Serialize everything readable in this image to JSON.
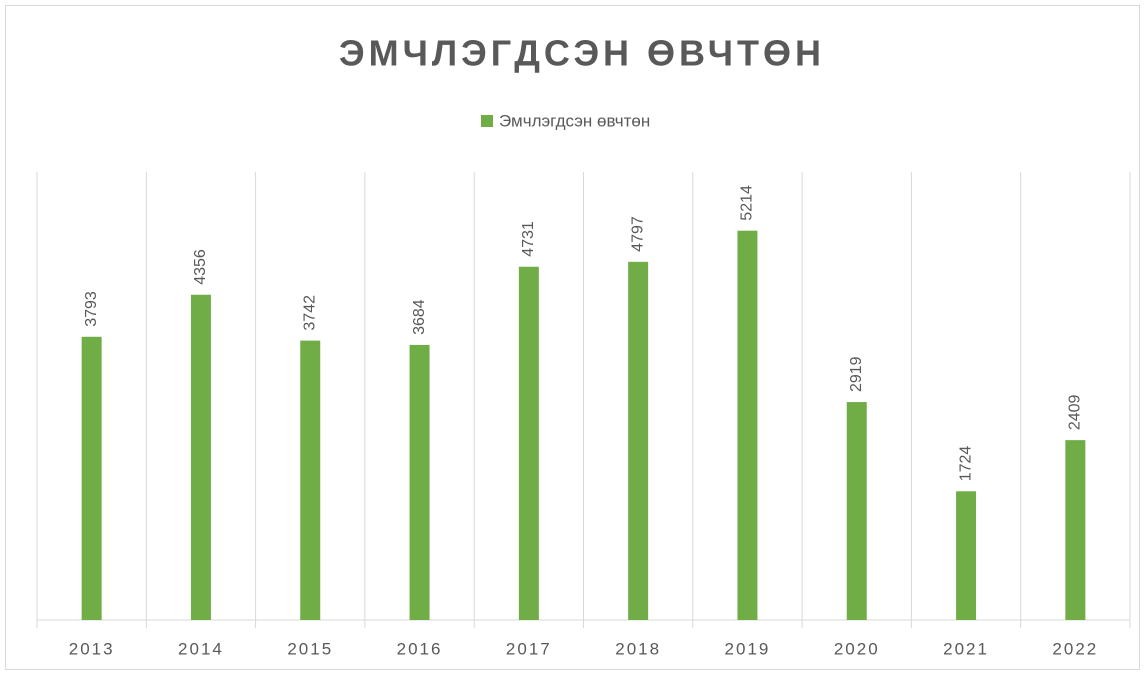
{
  "chart_data": {
    "type": "bar",
    "title": "ЭМЧЛЭГДСЭН ӨВЧТӨН",
    "categories": [
      "2013",
      "2014",
      "2015",
      "2016",
      "2017",
      "2018",
      "2019",
      "2020",
      "2021",
      "2022"
    ],
    "series": [
      {
        "name": "Эмчлэгдсэн өвчтөн",
        "color": "#70ad47",
        "values": [
          3793,
          4356,
          3742,
          3684,
          4731,
          4797,
          5214,
          2919,
          1724,
          2409
        ]
      }
    ],
    "ylim": [
      0,
      6000
    ],
    "grid": true
  }
}
